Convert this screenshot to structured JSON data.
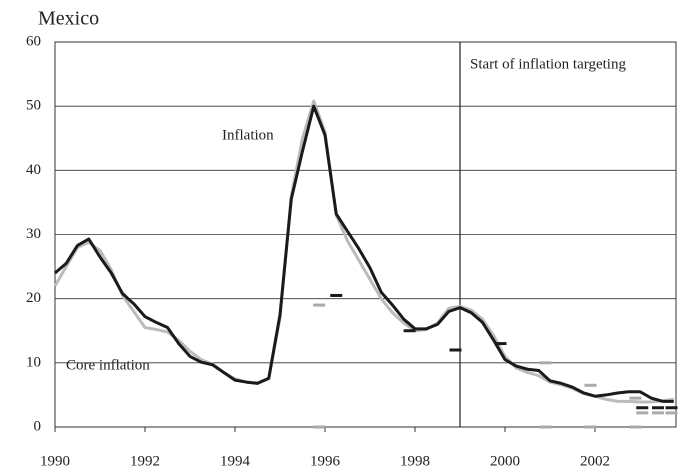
{
  "chart_data": {
    "type": "line",
    "title": "Mexico",
    "annotations": [
      "Inflation",
      "Core inflation",
      "Start of inflation targeting"
    ],
    "vline": 1999,
    "x": [
      1990,
      1990.25,
      1990.5,
      1990.75,
      1991,
      1991.25,
      1991.5,
      1991.75,
      1992,
      1992.25,
      1992.5,
      1992.75,
      1993,
      1993.25,
      1993.5,
      1993.75,
      1994,
      1994.25,
      1994.5,
      1994.75,
      1995,
      1995.25,
      1995.5,
      1995.75,
      1996,
      1996.25,
      1996.5,
      1996.75,
      1997,
      1997.25,
      1997.5,
      1997.75,
      1998,
      1998.25,
      1998.5,
      1998.75,
      1999,
      1999.25,
      1999.5,
      1999.75,
      2000,
      2000.25,
      2000.5,
      2000.75,
      2001,
      2001.25,
      2001.5,
      2001.75,
      2002,
      2002.25,
      2002.5,
      2002.75,
      2003,
      2003.25,
      2003.5,
      2003.75
    ],
    "series": [
      {
        "color": "#bbbbbb",
        "values": [
          22,
          25,
          28,
          28.8,
          27.5,
          24.5,
          20.5,
          18,
          15.5,
          15.2,
          14.8,
          13.5,
          11.8,
          10.5,
          9.8,
          8.5,
          7.5,
          7,
          6.9,
          7.5,
          17,
          36,
          45,
          50.8,
          46,
          33,
          29,
          26,
          23,
          20,
          17.8,
          16.2,
          15,
          15.2,
          16.2,
          18.5,
          18.8,
          18.2,
          16.8,
          14.2,
          11,
          9.2,
          8.5,
          8,
          7,
          6.6,
          6,
          5.2,
          4.8,
          4.3,
          4,
          4,
          3.9,
          3.9,
          4.1,
          4.3
        ]
      },
      {
        "color": "#1a1a1a",
        "values": [
          24,
          25.5,
          28.3,
          29.3,
          26.5,
          24,
          20.8,
          19.2,
          17.2,
          16.3,
          15.5,
          13,
          11,
          10.1,
          9.7,
          8.5,
          7.3,
          7,
          6.8,
          7.6,
          17.5,
          35.5,
          43,
          50,
          45.5,
          33.2,
          30.5,
          27.8,
          24.8,
          21,
          19,
          16.8,
          15.3,
          15.3,
          16,
          18,
          18.6,
          17.8,
          16.3,
          13.5,
          10.5,
          9.5,
          9,
          8.8,
          7.2,
          6.8,
          6.2,
          5.3,
          4.8,
          5,
          5.3,
          5.5,
          5.5,
          4.5,
          4,
          4
        ]
      }
    ],
    "markers": [
      {
        "color": "#1a1a1a",
        "x": [
          1996.25,
          1997.88,
          1998.9,
          1999.9,
          2003.05,
          2003.4,
          2003.7
        ],
        "values": [
          20.5,
          15,
          12,
          13,
          3,
          3,
          3
        ]
      },
      {
        "color": "#aaaaaa",
        "x": [
          1995.87,
          2000.9,
          2001.9,
          2002.9,
          2003.05,
          2003.4,
          2003.7,
          1995.87,
          2000.9,
          2001.9,
          2002.9
        ],
        "values": [
          19,
          10,
          6.5,
          4.5,
          2.2,
          2.2,
          2.2,
          0,
          0,
          0,
          0
        ]
      }
    ],
    "xlim": [
      1990,
      2003.8
    ],
    "xticks": [
      1990,
      1992,
      1994,
      1996,
      1998,
      2000,
      2002
    ],
    "ylim": [
      0,
      60
    ],
    "yticks": [
      0,
      10,
      20,
      30,
      40,
      50,
      60
    ],
    "grid": true
  }
}
